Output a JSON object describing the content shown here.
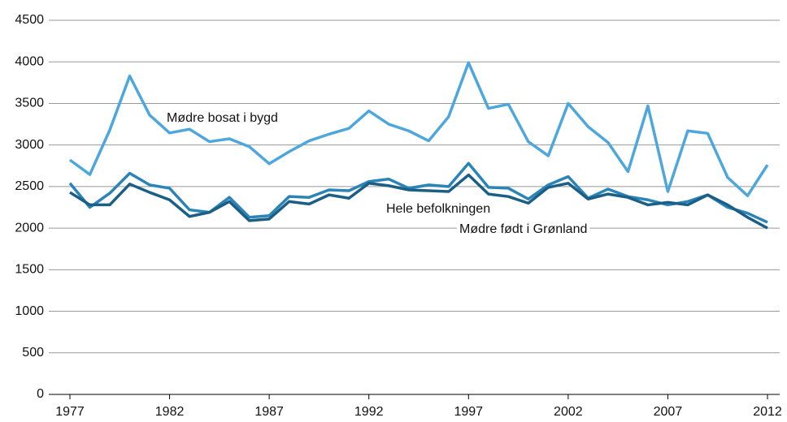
{
  "chart_data": {
    "type": "line",
    "x": [
      1977,
      1978,
      1979,
      1980,
      1981,
      1982,
      1983,
      1984,
      1985,
      1986,
      1987,
      1988,
      1989,
      1990,
      1991,
      1992,
      1993,
      1994,
      1995,
      1996,
      1997,
      1998,
      1999,
      2000,
      2001,
      2002,
      2003,
      2004,
      2005,
      2006,
      2007,
      2008,
      2009,
      2010,
      2011,
      2012
    ],
    "series": [
      {
        "name": "Mødre bosat i bygd",
        "color": "#4ea7dc",
        "values": [
          2820,
          2645,
          3180,
          3830,
          3360,
          3145,
          3190,
          3040,
          3075,
          2980,
          2775,
          2920,
          3050,
          3130,
          3200,
          3410,
          3250,
          3170,
          3050,
          3340,
          3990,
          3440,
          3490,
          3040,
          2870,
          3500,
          3220,
          3030,
          2680,
          3470,
          2440,
          3170,
          3140,
          2610,
          2390,
          2760
        ]
      },
      {
        "name": "Hele befolkningen",
        "color": "#2a84b8",
        "values": [
          2540,
          2250,
          2420,
          2660,
          2520,
          2480,
          2220,
          2190,
          2370,
          2130,
          2150,
          2380,
          2370,
          2460,
          2450,
          2560,
          2590,
          2480,
          2520,
          2500,
          2780,
          2490,
          2480,
          2350,
          2520,
          2620,
          2360,
          2470,
          2380,
          2340,
          2280,
          2320,
          2400,
          2250,
          2180,
          2070
        ]
      },
      {
        "name": "Mødre født i Grønland",
        "color": "#1b5e86",
        "values": [
          2430,
          2280,
          2280,
          2530,
          2430,
          2340,
          2140,
          2190,
          2320,
          2090,
          2110,
          2320,
          2290,
          2400,
          2360,
          2540,
          2510,
          2460,
          2450,
          2440,
          2640,
          2410,
          2380,
          2300,
          2490,
          2540,
          2350,
          2410,
          2370,
          2280,
          2310,
          2280,
          2400,
          2280,
          2130,
          2000
        ]
      }
    ],
    "xlim": [
      1977,
      2012
    ],
    "xticks": [
      1977,
      1982,
      1987,
      1992,
      1997,
      2002,
      2007,
      2012
    ],
    "ylim": [
      0,
      4500
    ],
    "yticks": [
      0,
      500,
      1000,
      1500,
      2000,
      2500,
      3000,
      3500,
      4000,
      4500
    ],
    "grid": true
  }
}
